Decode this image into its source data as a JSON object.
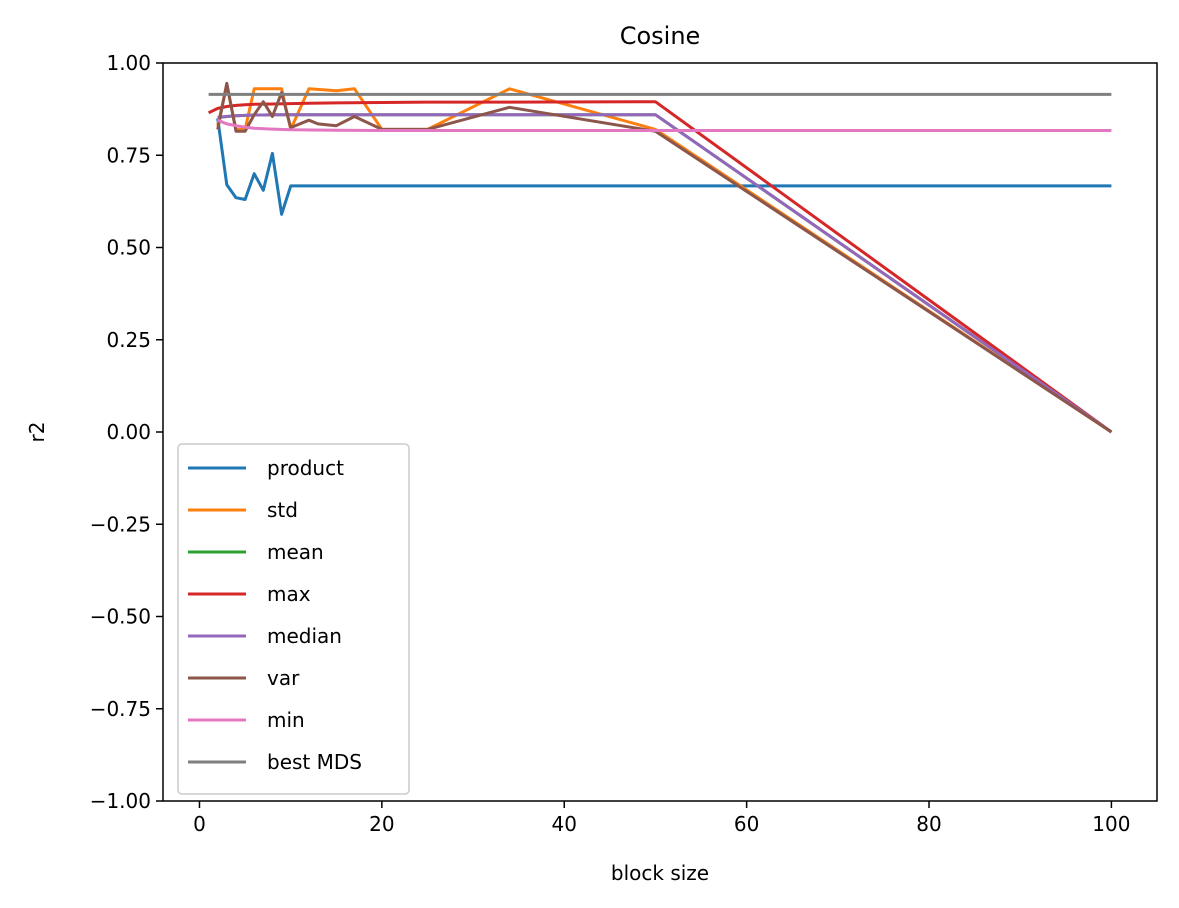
{
  "chart_data": {
    "type": "line",
    "title": "Cosine",
    "xlabel": "block size",
    "ylabel": "r2",
    "xlim": [
      -4,
      105
    ],
    "ylim": [
      -1.0,
      1.0
    ],
    "xticks": [
      0,
      20,
      40,
      60,
      80,
      100
    ],
    "xtick_labels": [
      "0",
      "20",
      "40",
      "60",
      "80",
      "100"
    ],
    "yticks": [
      -1.0,
      -0.75,
      -0.5,
      -0.25,
      0.0,
      0.25,
      0.5,
      0.75,
      1.0
    ],
    "ytick_labels": [
      "−1.00",
      "−0.75",
      "−0.50",
      "−0.25",
      "0.00",
      "0.25",
      "0.50",
      "0.75",
      "1.00"
    ],
    "grid": false,
    "legend_position": "lower-left",
    "series": [
      {
        "name": "product",
        "color": "#1f77b4",
        "x": [
          2,
          3,
          4,
          5,
          6,
          7,
          8,
          9,
          10,
          12,
          15,
          20,
          25,
          34,
          50,
          100
        ],
        "y": [
          0.85,
          0.67,
          0.635,
          0.63,
          0.7,
          0.655,
          0.755,
          0.59,
          0.667,
          0.667,
          0.667,
          0.667,
          0.667,
          0.667,
          0.667,
          0.667
        ]
      },
      {
        "name": "std",
        "color": "#ff7f0e",
        "x": [
          2,
          3,
          4,
          5,
          6,
          7,
          8,
          9,
          10,
          12,
          15,
          17,
          20,
          25,
          34,
          50,
          100
        ],
        "y": [
          0.83,
          0.94,
          0.82,
          0.82,
          0.93,
          0.93,
          0.93,
          0.93,
          0.82,
          0.93,
          0.925,
          0.93,
          0.82,
          0.82,
          0.93,
          0.82,
          0.0
        ]
      },
      {
        "name": "mean",
        "color": "#2ca02c",
        "x": [
          2,
          3,
          4,
          5,
          6,
          7,
          8,
          9,
          10,
          12,
          15,
          17,
          20,
          25,
          34,
          50,
          100
        ],
        "y": [
          0.852,
          0.855,
          0.857,
          0.858,
          0.859,
          0.859,
          0.86,
          0.86,
          0.86,
          0.86,
          0.86,
          0.86,
          0.86,
          0.86,
          0.86,
          0.86,
          0.0
        ]
      },
      {
        "name": "max",
        "color": "#d62728",
        "x": [
          1,
          2,
          3,
          4,
          5,
          6,
          8,
          10,
          12,
          15,
          20,
          25,
          34,
          50,
          100
        ],
        "y": [
          0.865,
          0.877,
          0.882,
          0.885,
          0.887,
          0.888,
          0.889,
          0.89,
          0.891,
          0.892,
          0.893,
          0.894,
          0.894,
          0.895,
          0.0
        ]
      },
      {
        "name": "median",
        "color": "#9467bd",
        "x": [
          2,
          3,
          4,
          5,
          6,
          7,
          8,
          9,
          10,
          12,
          15,
          17,
          20,
          25,
          34,
          50,
          100
        ],
        "y": [
          0.853,
          0.855,
          0.857,
          0.858,
          0.859,
          0.859,
          0.86,
          0.86,
          0.86,
          0.86,
          0.86,
          0.86,
          0.86,
          0.86,
          0.86,
          0.86,
          0.0
        ]
      },
      {
        "name": "var",
        "color": "#8c564b",
        "x": [
          2,
          3,
          4,
          5,
          6,
          7,
          8,
          9,
          10,
          12,
          13,
          15,
          17,
          20,
          25,
          34,
          50,
          100
        ],
        "y": [
          0.82,
          0.945,
          0.815,
          0.815,
          0.86,
          0.895,
          0.855,
          0.92,
          0.825,
          0.845,
          0.835,
          0.83,
          0.855,
          0.82,
          0.82,
          0.88,
          0.815,
          0.0
        ]
      },
      {
        "name": "min",
        "color": "#e377c2",
        "x": [
          2,
          3,
          4,
          5,
          6,
          8,
          10,
          15,
          20,
          25,
          34,
          50,
          100
        ],
        "y": [
          0.845,
          0.835,
          0.83,
          0.826,
          0.823,
          0.821,
          0.819,
          0.818,
          0.817,
          0.817,
          0.817,
          0.817,
          0.817
        ]
      },
      {
        "name": "best MDS",
        "color": "#7f7f7f",
        "x": [
          1,
          100
        ],
        "y": [
          0.915,
          0.915
        ]
      }
    ]
  }
}
